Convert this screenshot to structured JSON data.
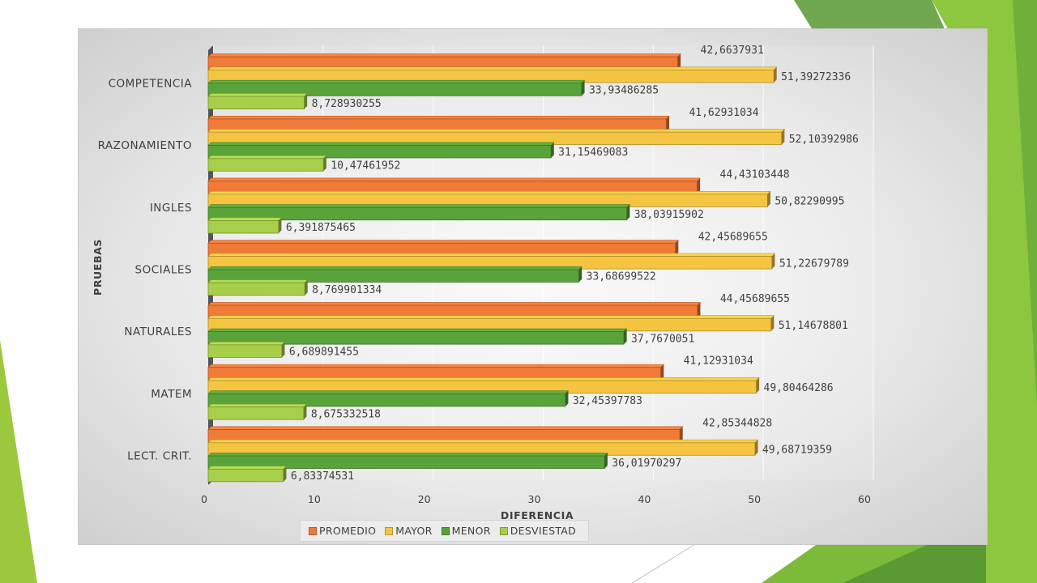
{
  "colors": {
    "background": "#ffffff",
    "accent_green_dark": "#4e9a2a",
    "accent_green_light": "#9bc83d"
  },
  "chart_data": {
    "type": "bar",
    "orientation": "horizontal",
    "categories": [
      "COMPETENCIA",
      "RAZONAMIENTO",
      "INGLES",
      "SOCIALES",
      "NATURALES",
      "MATEM",
      "LECT. CRIT."
    ],
    "series": [
      {
        "name": "PROMEDIO",
        "color": "#f07a38",
        "values": [
          42.6637931,
          41.62931034,
          44.43103448,
          42.45689655,
          44.45689655,
          41.12931034,
          42.85344828
        ],
        "labels": [
          "42,6637931",
          "41,62931034",
          "44,43103448",
          "42,45689655",
          "44,45689655",
          "41,12931034",
          "42,85344828"
        ]
      },
      {
        "name": "MAYOR",
        "color": "#f5c542",
        "values": [
          51.39272336,
          52.10392986,
          50.82290995,
          51.22679789,
          51.14678801,
          49.80464286,
          49.68719359
        ],
        "labels": [
          "51,39272336",
          "52,10392986",
          "50,82290995",
          "51,22679789",
          "51,14678801",
          "49,80464286",
          "49,68719359"
        ]
      },
      {
        "name": "MENOR",
        "color": "#5aa33a",
        "values": [
          33.93486285,
          31.15469083,
          38.03915902,
          33.68699522,
          37.7670051,
          32.45397783,
          36.01970297
        ],
        "labels": [
          "33,93486285",
          "31,15469083",
          "38,03915902",
          "33,68699522",
          "37,7670051",
          "32,45397783",
          "36,01970297"
        ]
      },
      {
        "name": "DESVIESTAD",
        "color": "#a8cf4a",
        "values": [
          8.728930255,
          10.47461952,
          6.391875465,
          8.769901334,
          6.689891455,
          8.675332518,
          6.83374531
        ],
        "labels": [
          "8,728930255",
          "10,47461952",
          "6,391875465",
          "8,769901334",
          "6,689891455",
          "8,675332518",
          "6,83374531"
        ]
      }
    ],
    "xlabel": "DIFERENCIA",
    "ylabel": "PRUEBAS",
    "xlim": [
      0,
      60
    ],
    "xticks": [
      "0",
      "10",
      "20",
      "30",
      "40",
      "50",
      "60"
    ],
    "grid": true,
    "legend_position": "bottom"
  }
}
